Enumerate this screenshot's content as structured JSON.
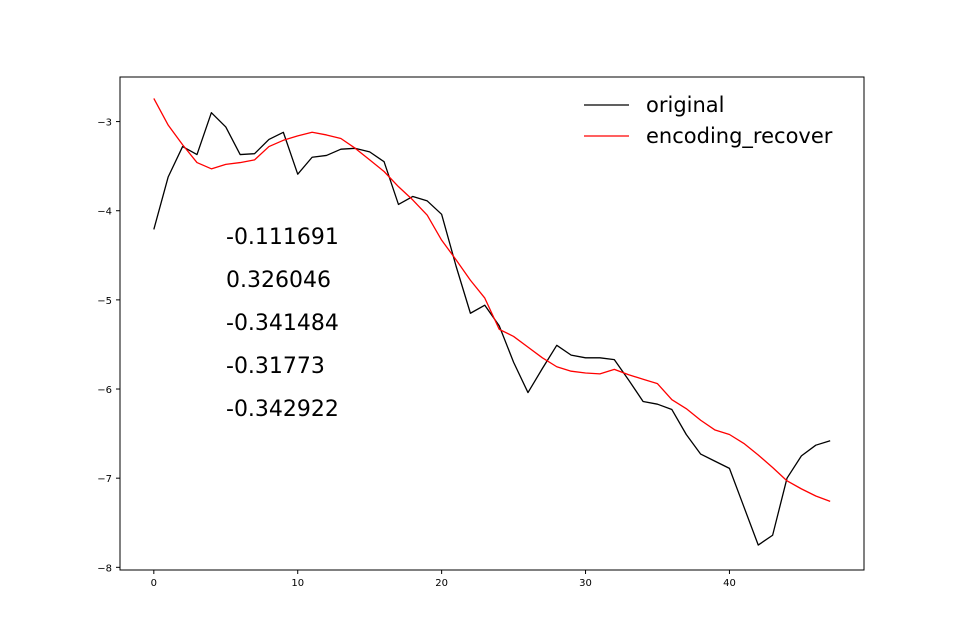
{
  "chart_data": {
    "type": "line",
    "title": "",
    "xlabel": "",
    "ylabel": "",
    "xlim": [
      -2.35,
      49.35
    ],
    "ylim": [
      -8.03,
      -2.5
    ],
    "grid": false,
    "legend_placement": "top-right",
    "xticks": [
      0,
      10,
      20,
      30,
      40
    ],
    "yticks": [
      -8,
      -7,
      -6,
      -5,
      -4,
      -3
    ],
    "xtick_labels": [
      "0",
      "10",
      "20",
      "30",
      "40"
    ],
    "ytick_labels": [
      "−8",
      "−7",
      "−6",
      "−5",
      "−4",
      "−3"
    ],
    "x": [
      0,
      1,
      2,
      3,
      4,
      5,
      6,
      7,
      8,
      9,
      10,
      11,
      12,
      13,
      14,
      15,
      16,
      17,
      18,
      19,
      20,
      21,
      22,
      23,
      24,
      25,
      26,
      27,
      28,
      29,
      30,
      31,
      32,
      33,
      34,
      35,
      36,
      37,
      38,
      39,
      40,
      41,
      42,
      43,
      44,
      45,
      46,
      47
    ],
    "series": [
      {
        "name": "original",
        "color": "#000000",
        "values": [
          -4.21,
          -3.62,
          -3.28,
          -3.37,
          -2.9,
          -3.06,
          -3.37,
          -3.36,
          -3.2,
          -3.12,
          -3.59,
          -3.4,
          -3.38,
          -3.31,
          -3.3,
          -3.34,
          -3.45,
          -3.93,
          -3.84,
          -3.89,
          -4.04,
          -4.62,
          -5.15,
          -5.06,
          -5.29,
          -5.7,
          -6.04,
          -5.77,
          -5.51,
          -5.62,
          -5.65,
          -5.65,
          -5.67,
          -5.9,
          -6.14,
          -6.17,
          -6.23,
          -6.51,
          -6.73,
          -6.81,
          -6.89,
          -7.32,
          -7.75,
          -7.64,
          -7.0,
          -6.75,
          -6.63,
          -6.58
        ]
      },
      {
        "name": "encoding_recover",
        "color": "#ff0000",
        "values": [
          -2.74,
          -3.04,
          -3.26,
          -3.46,
          -3.53,
          -3.48,
          -3.46,
          -3.43,
          -3.28,
          -3.21,
          -3.16,
          -3.12,
          -3.15,
          -3.19,
          -3.3,
          -3.43,
          -3.56,
          -3.73,
          -3.88,
          -4.05,
          -4.33,
          -4.55,
          -4.78,
          -4.98,
          -5.33,
          -5.41,
          -5.53,
          -5.65,
          -5.75,
          -5.8,
          -5.82,
          -5.83,
          -5.78,
          -5.84,
          -5.89,
          -5.94,
          -6.12,
          -6.22,
          -6.35,
          -6.46,
          -6.51,
          -6.61,
          -6.74,
          -6.88,
          -7.03,
          -7.12,
          -7.2,
          -7.26
        ]
      }
    ],
    "annotations": [
      "-0.111691",
      "0.326046",
      "-0.341484",
      "-0.31773",
      "-0.342922"
    ]
  }
}
